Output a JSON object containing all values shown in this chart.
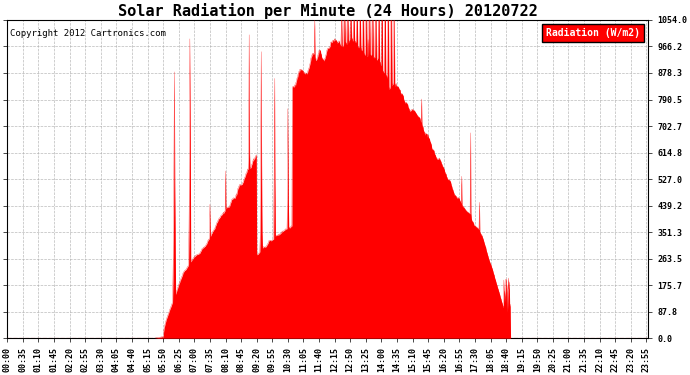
{
  "title": "Solar Radiation per Minute (24 Hours) 20120722",
  "copyright": "Copyright 2012 Cartronics.com",
  "legend_label": "Radiation (W/m2)",
  "background_color": "#ffffff",
  "plot_background": "#ffffff",
  "bar_color": "#ff0000",
  "grid_color": "#aaaaaa",
  "y_ticks": [
    0.0,
    87.8,
    175.7,
    263.5,
    351.3,
    439.2,
    527.0,
    614.8,
    702.7,
    790.5,
    878.3,
    966.2,
    1054.0
  ],
  "ylim": [
    0,
    1054.0
  ],
  "num_minutes": 1440,
  "max_radiation": 1054.0,
  "title_fontsize": 11,
  "copyright_fontsize": 6.5,
  "tick_fontsize": 6,
  "x_tick_step": 35
}
